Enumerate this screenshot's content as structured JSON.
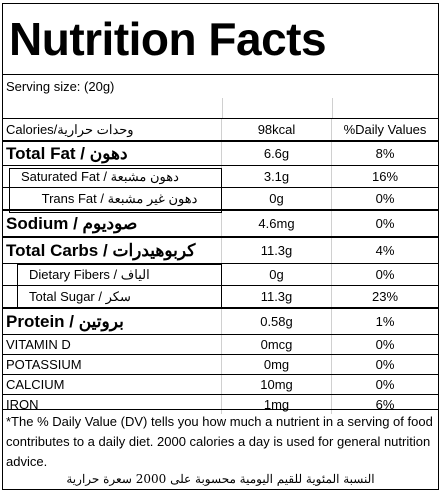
{
  "title": "Nutrition Facts",
  "serving": "Serving size:  (20g)",
  "header": {
    "label_en": "Calories/",
    "label_ar": "وحدات حرارية",
    "amount": "98kcal",
    "dv": "%Daily Values"
  },
  "rows": [
    {
      "en": "Total Fat",
      "sep": " / ",
      "ar": "دهون",
      "amount": "6.6g",
      "dv": "8%"
    },
    {
      "en": "Saturated Fat",
      "sep": " / ",
      "ar": "دهون مشبعة",
      "amount": "3.1g",
      "dv": "16%"
    },
    {
      "en": "Trans Fat",
      "sep": " / ",
      "ar": "دهون غير مشبعة",
      "amount": "0g",
      "dv": "0%"
    },
    {
      "en": "Sodium",
      "sep": " / ",
      "ar": "صوديوم",
      "amount": "4.6mg",
      "dv": "0%"
    },
    {
      "en": "Total Carbs",
      "sep": " / ",
      "ar": "كربوهيدرات",
      "amount": "11.3g",
      "dv": "4%"
    },
    {
      "en": "Dietary Fibers",
      "sep": " / ",
      "ar": "الياف",
      "amount": "0g",
      "dv": "0%"
    },
    {
      "en": "Total Sugar",
      "sep": " / ",
      "ar": "سكر",
      "amount": "11.3g",
      "dv": "23%"
    },
    {
      "en": "Protein",
      "sep": " / ",
      "ar": "بروتين",
      "amount": "0.58g",
      "dv": "1%"
    },
    {
      "en": "VITAMIN D",
      "amount": "0mcg",
      "dv": "0%"
    },
    {
      "en": "POTASSIUM",
      "amount": "0mg",
      "dv": "0%"
    },
    {
      "en": "CALCIUM",
      "amount": "10mg",
      "dv": "0%"
    },
    {
      "en": "IRON",
      "amount": "1mg",
      "dv": "6%"
    }
  ],
  "footer": {
    "en": "*The % Daily Value (DV) tells you how much a nutrient in a serving of food contributes to a daily diet. 2000 calories a day is used for general nutrition advice.",
    "ar": "النسبة المئوية للقيم اليومية محسوبة على 2000 سعرة حرارية"
  }
}
